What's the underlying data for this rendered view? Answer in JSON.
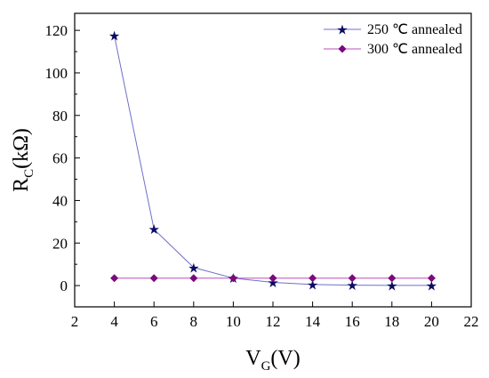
{
  "chart_data": {
    "type": "line",
    "title": "",
    "xlabel": {
      "main": "V",
      "sub": "G",
      "tail": "(V)"
    },
    "ylabel": {
      "main": "R",
      "sub": "C",
      "tail": "(kΩ)"
    },
    "xlim": [
      2,
      22
    ],
    "ylim": [
      -10,
      128
    ],
    "xticks": [
      2,
      4,
      6,
      8,
      10,
      12,
      14,
      16,
      18,
      20,
      22
    ],
    "yticks": [
      0,
      20,
      40,
      60,
      80,
      100,
      120
    ],
    "grid": false,
    "legend_position": "top-right",
    "x": [
      4,
      6,
      8,
      10,
      12,
      14,
      16,
      18,
      20
    ],
    "series": [
      {
        "name": "250 ℃ annealed",
        "marker": "star",
        "color": "#6f6fc9",
        "marker_color": "#0b0b63",
        "values": [
          117.5,
          26.5,
          8.5,
          3.5,
          1.5,
          0.5,
          0.2,
          0.1,
          0.1
        ]
      },
      {
        "name": "300 ℃ annealed",
        "marker": "diamond",
        "color": "#c04cc0",
        "marker_color": "#7a0a7a",
        "values": [
          3.5,
          3.5,
          3.5,
          3.5,
          3.5,
          3.5,
          3.5,
          3.5,
          3.5
        ]
      }
    ]
  }
}
